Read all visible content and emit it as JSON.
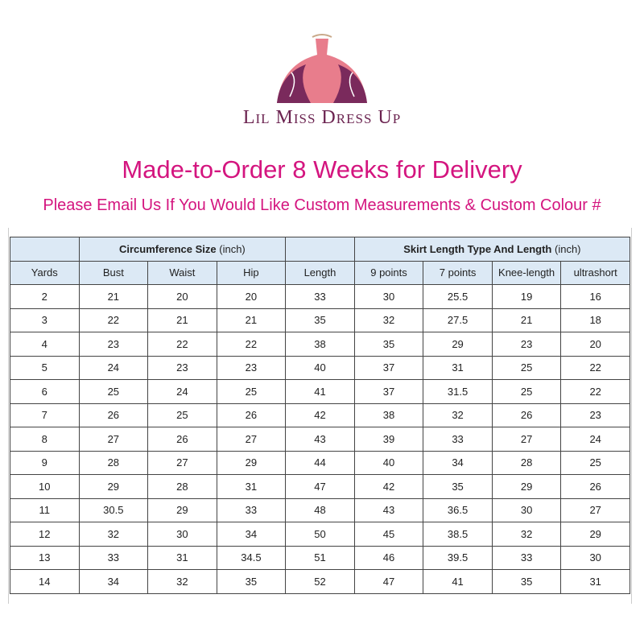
{
  "brand": {
    "name": "Lil Miss Dress Up",
    "colors": {
      "plum": "#6b2350",
      "pink": "#e87d8c"
    }
  },
  "title": "Made-to-Order 8 Weeks for Delivery",
  "subtitle": "Please Email Us If You Would Like Custom Measurements & Custom Colour #",
  "accent_color": "#d4157f",
  "table": {
    "group_headers": {
      "circumference_bold": "Circumference Size",
      "circumference_unit": " (inch)",
      "skirt_bold": "Skirt Length Type And Length",
      "skirt_unit": " (inch)"
    },
    "columns": [
      "Yards",
      "Bust",
      "Waist",
      "Hip",
      "Length",
      "9 points",
      "7 points",
      "Knee-length",
      "ultrashort"
    ],
    "rows": [
      [
        "2",
        "21",
        "20",
        "20",
        "33",
        "30",
        "25.5",
        "19",
        "16"
      ],
      [
        "3",
        "22",
        "21",
        "21",
        "35",
        "32",
        "27.5",
        "21",
        "18"
      ],
      [
        "4",
        "23",
        "22",
        "22",
        "38",
        "35",
        "29",
        "23",
        "20"
      ],
      [
        "5",
        "24",
        "23",
        "23",
        "40",
        "37",
        "31",
        "25",
        "22"
      ],
      [
        "6",
        "25",
        "24",
        "25",
        "41",
        "37",
        "31.5",
        "25",
        "22"
      ],
      [
        "7",
        "26",
        "25",
        "26",
        "42",
        "38",
        "32",
        "26",
        "23"
      ],
      [
        "8",
        "27",
        "26",
        "27",
        "43",
        "39",
        "33",
        "27",
        "24"
      ],
      [
        "9",
        "28",
        "27",
        "29",
        "44",
        "40",
        "34",
        "28",
        "25"
      ],
      [
        "10",
        "29",
        "28",
        "31",
        "47",
        "42",
        "35",
        "29",
        "26"
      ],
      [
        "11",
        "30.5",
        "29",
        "33",
        "48",
        "43",
        "36.5",
        "30",
        "27"
      ],
      [
        "12",
        "32",
        "30",
        "34",
        "50",
        "45",
        "38.5",
        "32",
        "29"
      ],
      [
        "13",
        "33",
        "31",
        "34.5",
        "51",
        "46",
        "39.5",
        "33",
        "30"
      ],
      [
        "14",
        "34",
        "32",
        "35",
        "52",
        "47",
        "41",
        "35",
        "31"
      ]
    ]
  }
}
